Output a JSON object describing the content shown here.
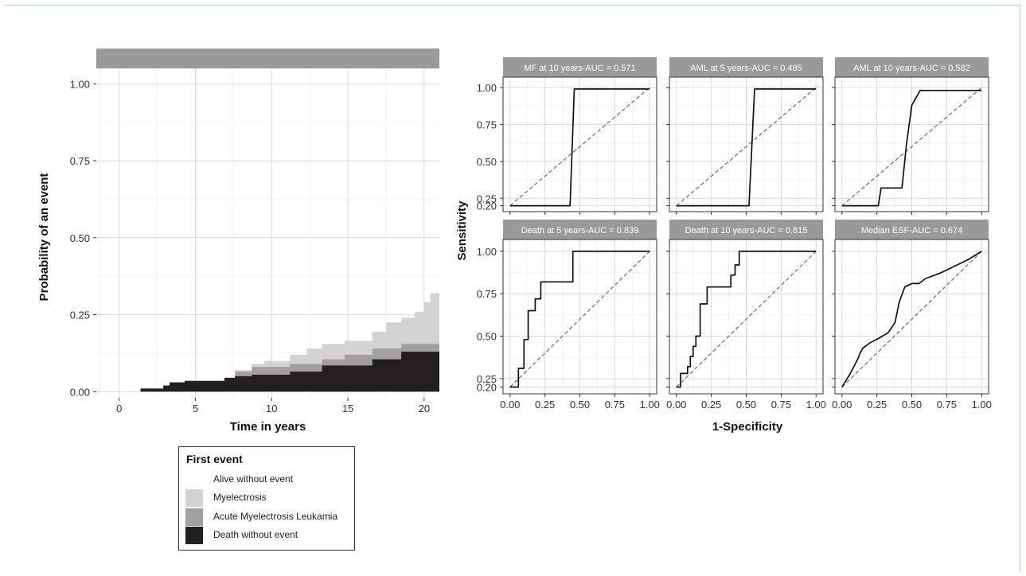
{
  "chart_data": [
    {
      "type": "area",
      "panel": "cumulative-incidence",
      "strip_label": "",
      "xlabel": "Time in years",
      "ylabel": "Probability of an event",
      "xlim": [
        -1.5,
        21
      ],
      "ylim": [
        -0.02,
        1.05
      ],
      "x_ticks": [
        0,
        5,
        10,
        15,
        20
      ],
      "y_ticks": [
        0.0,
        0.25,
        0.5,
        0.75,
        1.0
      ],
      "x_tick_labels": [
        "0",
        "5",
        "10",
        "15",
        "20"
      ],
      "y_tick_labels": [
        "0.00",
        "0.25",
        "0.50",
        "0.75",
        "1.00"
      ],
      "grid": true,
      "legend": {
        "title": "First event",
        "entries": [
          "Alive without event",
          "Myelectrosis",
          "Acute Myelectrosis Leukamia",
          "Death without event"
        ],
        "colors": [
          "#ffffff",
          "#d3d3d3",
          "#a0a0a0",
          "#231f20"
        ]
      },
      "series": [
        {
          "name": "Death without event",
          "color": "#231f20",
          "x": [
            1.4,
            2.9,
            3.3,
            4.3,
            6.9,
            7.6,
            8.7,
            11.2,
            13.3,
            14.8,
            16.6,
            18.5,
            20.0,
            21.0
          ],
          "cumulative": [
            0.01,
            0.02,
            0.03,
            0.035,
            0.045,
            0.05,
            0.055,
            0.065,
            0.085,
            0.085,
            0.105,
            0.13,
            0.13,
            0.13
          ]
        },
        {
          "name": "Acute Myelectrosis Leukamia",
          "color": "#a0a0a0",
          "x": [
            1.4,
            2.9,
            3.3,
            4.3,
            6.9,
            7.6,
            8.7,
            11.2,
            13.3,
            14.8,
            16.6,
            18.5,
            20.0,
            21.0
          ],
          "cumulative": [
            0.01,
            0.02,
            0.03,
            0.035,
            0.045,
            0.065,
            0.08,
            0.09,
            0.105,
            0.12,
            0.14,
            0.155,
            0.155,
            0.155
          ]
        },
        {
          "name": "Myelectrosis",
          "color": "#d3d3d3",
          "x": [
            1.4,
            2.9,
            3.3,
            4.3,
            6.9,
            7.6,
            8.7,
            9.5,
            11.2,
            12.3,
            13.3,
            14.8,
            16.6,
            17.5,
            18.5,
            19.4,
            20.0,
            20.4,
            21.0
          ],
          "cumulative": [
            0.01,
            0.02,
            0.03,
            0.035,
            0.045,
            0.07,
            0.09,
            0.1,
            0.12,
            0.14,
            0.155,
            0.165,
            0.195,
            0.225,
            0.24,
            0.26,
            0.29,
            0.32,
            0.33
          ]
        }
      ]
    },
    {
      "type": "line",
      "panel": "roc-grid",
      "xlabel": "1-Specificity",
      "ylabel": "Sensitivity",
      "xlim": [
        -0.05,
        1.05
      ],
      "ylim": [
        0.16,
        1.07
      ],
      "x_ticks": [
        0.0,
        0.25,
        0.5,
        0.75,
        1.0
      ],
      "y_ticks": [
        0.2,
        0.25,
        0.5,
        0.75,
        1.0
      ],
      "x_tick_labels": [
        "0.00",
        "0.25",
        "0.50",
        "0.75",
        "1.00"
      ],
      "y_tick_labels": [
        "0.20",
        "0.25",
        "0.50",
        "0.75",
        "1.00"
      ],
      "grid": true,
      "reference_line": {
        "x": [
          0,
          1
        ],
        "y": [
          0.2,
          1.0
        ],
        "style": "dashed"
      },
      "panels": [
        {
          "title": "MF at 10 years-AUC = 0.571",
          "fpr": [
            0.0,
            0.43,
            0.46,
            1.0
          ],
          "tpr": [
            0.2,
            0.2,
            0.99,
            0.99
          ]
        },
        {
          "title": "AML at 5 years-AUC = 0.485",
          "fpr": [
            0.0,
            0.52,
            0.56,
            1.0
          ],
          "tpr": [
            0.2,
            0.2,
            0.99,
            0.99
          ]
        },
        {
          "title": "AML at 10 years-AUC = 0.582",
          "fpr": [
            0.0,
            0.26,
            0.28,
            0.43,
            0.46,
            0.5,
            0.56,
            0.6,
            1.0
          ],
          "tpr": [
            0.2,
            0.2,
            0.32,
            0.32,
            0.6,
            0.88,
            0.98,
            0.98,
            0.98
          ]
        },
        {
          "title": "Death at 5 years-AUC = 0.839",
          "fpr": [
            0.0,
            0.06,
            0.06,
            0.1,
            0.1,
            0.13,
            0.13,
            0.18,
            0.18,
            0.22,
            0.22,
            0.45,
            0.45,
            1.0
          ],
          "tpr": [
            0.2,
            0.2,
            0.31,
            0.31,
            0.48,
            0.48,
            0.65,
            0.65,
            0.72,
            0.72,
            0.82,
            0.82,
            1.0,
            1.0
          ]
        },
        {
          "title": "Death at 10 years-AUC = 0.815",
          "fpr": [
            0.0,
            0.03,
            0.03,
            0.08,
            0.08,
            0.1,
            0.1,
            0.12,
            0.12,
            0.14,
            0.14,
            0.17,
            0.17,
            0.22,
            0.22,
            0.39,
            0.39,
            0.42,
            0.42,
            0.45,
            0.45,
            1.0
          ],
          "tpr": [
            0.2,
            0.2,
            0.28,
            0.28,
            0.32,
            0.32,
            0.38,
            0.38,
            0.44,
            0.44,
            0.5,
            0.5,
            0.69,
            0.69,
            0.79,
            0.79,
            0.86,
            0.86,
            0.92,
            0.92,
            1.0,
            1.0
          ]
        },
        {
          "title": "Median ESF-AUC = 0.674",
          "fpr": [
            0.0,
            0.06,
            0.11,
            0.13,
            0.15,
            0.2,
            0.27,
            0.33,
            0.38,
            0.41,
            0.45,
            0.5,
            0.55,
            0.6,
            0.7,
            0.8,
            0.9,
            1.0
          ],
          "tpr": [
            0.2,
            0.28,
            0.36,
            0.4,
            0.43,
            0.46,
            0.49,
            0.52,
            0.58,
            0.7,
            0.79,
            0.81,
            0.81,
            0.84,
            0.87,
            0.91,
            0.95,
            1.0
          ]
        }
      ]
    }
  ]
}
